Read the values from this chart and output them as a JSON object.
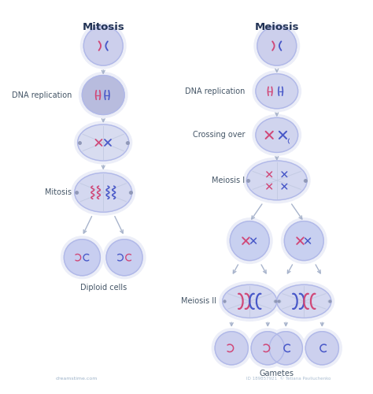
{
  "bg_color": "#ffffff",
  "title_mitosis": "Mitosis",
  "title_meiosis": "Meiosis",
  "label_dna_rep": "DNA replication",
  "label_crossing": "Crossing over",
  "label_mitosis": "Mitosis",
  "label_meiosis1": "Meiosis I",
  "label_diploid": "Diploid cells",
  "label_meiosis2": "Meiosis II",
  "label_gametes": "Gametes",
  "cell_fill": "#d8dcf0",
  "cell_fill_light": "#e4e7f5",
  "cell_fill_bright": "#c8cef0",
  "cell_stroke": "#b0b8e8",
  "glow_color": "#eceef8",
  "pink": "#d04878",
  "blue": "#4858c8",
  "purple": "#9878c8",
  "spindle_color": "#c0c8e0",
  "arrow_color": "#a8b4cc",
  "label_color": "#445566",
  "title_color": "#223355",
  "title_fontsize": 9.5,
  "label_fontsize": 7.0,
  "watermark": "dreamstime.com",
  "footer": "ID 189857921  © Tetiana Pavliuchenko"
}
